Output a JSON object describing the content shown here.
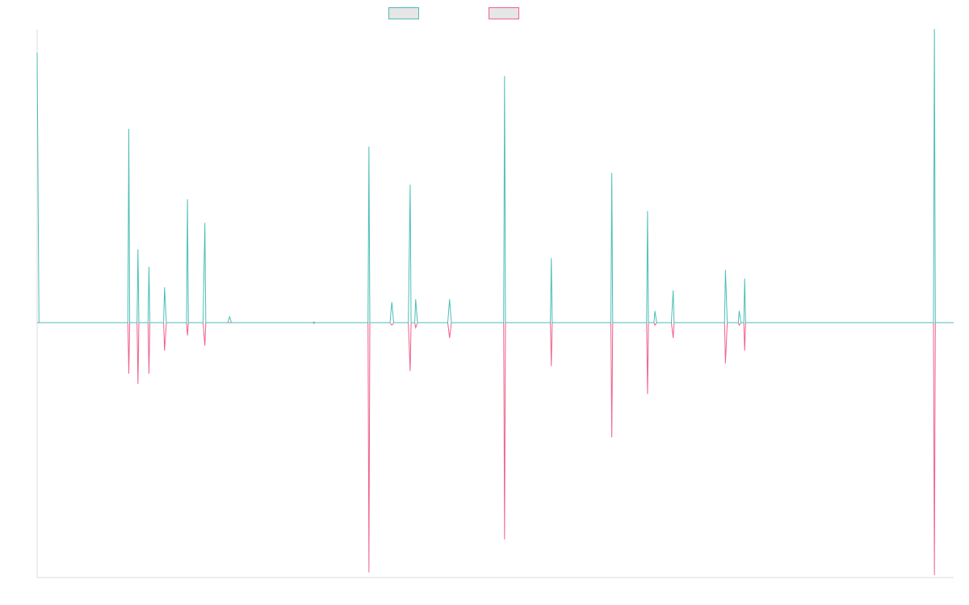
{
  "colors": {
    "series_a": "#4bbfb6",
    "series_b": "#f0628a",
    "axis": "#dddddd",
    "legend_fill": "#e6e6e6"
  },
  "chart_data": {
    "type": "line",
    "grid": false,
    "legend_placement": "top-center",
    "title": "",
    "xlabel": "",
    "ylabel": "",
    "xlim": [
      0,
      1000
    ],
    "ylim": [
      -100,
      100
    ],
    "series": [
      {
        "name": "",
        "color_key": "series_a",
        "points": [
          [
            0,
            92
          ],
          [
            2,
            0
          ],
          [
            99,
            0
          ],
          [
            100,
            66
          ],
          [
            101,
            0
          ],
          [
            109,
            0
          ],
          [
            110,
            25
          ],
          [
            111,
            0
          ],
          [
            121,
            0
          ],
          [
            122,
            19
          ],
          [
            123,
            0
          ],
          [
            138,
            0
          ],
          [
            139,
            12
          ],
          [
            141,
            0
          ],
          [
            163,
            0
          ],
          [
            164,
            42
          ],
          [
            165,
            0
          ],
          [
            181,
            0
          ],
          [
            183,
            34
          ],
          [
            184,
            0
          ],
          [
            208,
            0
          ],
          [
            210,
            2
          ],
          [
            212,
            0
          ],
          [
            301,
            0
          ],
          [
            302,
            0.3
          ],
          [
            303,
            0
          ],
          [
            361,
            0
          ],
          [
            362,
            60
          ],
          [
            363,
            0
          ],
          [
            385,
            0
          ],
          [
            387,
            7
          ],
          [
            389,
            0
          ],
          [
            405,
            0
          ],
          [
            407,
            47
          ],
          [
            408,
            0
          ],
          [
            412,
            0
          ],
          [
            413,
            8
          ],
          [
            415,
            0
          ],
          [
            448,
            0
          ],
          [
            450,
            8
          ],
          [
            452,
            0
          ],
          [
            509,
            0
          ],
          [
            510,
            84
          ],
          [
            511,
            0
          ],
          [
            560,
            0
          ],
          [
            561,
            22
          ],
          [
            562,
            0
          ],
          [
            626,
            0
          ],
          [
            627,
            51
          ],
          [
            628,
            0
          ],
          [
            665,
            0
          ],
          [
            666,
            38
          ],
          [
            667,
            0
          ],
          [
            673,
            0
          ],
          [
            674,
            4
          ],
          [
            676,
            0
          ],
          [
            692,
            0
          ],
          [
            694,
            11
          ],
          [
            695,
            0
          ],
          [
            750,
            0
          ],
          [
            751,
            18
          ],
          [
            753,
            0
          ],
          [
            765,
            0
          ],
          [
            766,
            4
          ],
          [
            768,
            0
          ],
          [
            771,
            0
          ],
          [
            772,
            15
          ],
          [
            773,
            0
          ],
          [
            978,
            0
          ],
          [
            979,
            100
          ],
          [
            980,
            0
          ],
          [
            1000,
            0
          ]
        ]
      },
      {
        "name": "",
        "color_key": "series_b",
        "points": [
          [
            0,
            0
          ],
          [
            99,
            0
          ],
          [
            100,
            -20
          ],
          [
            101,
            0
          ],
          [
            109,
            0
          ],
          [
            110,
            -24
          ],
          [
            111,
            0
          ],
          [
            121,
            0
          ],
          [
            122,
            -20
          ],
          [
            123,
            0
          ],
          [
            138,
            0
          ],
          [
            139,
            -11
          ],
          [
            141,
            0
          ],
          [
            163,
            0
          ],
          [
            164,
            -5
          ],
          [
            165,
            0
          ],
          [
            181,
            0
          ],
          [
            183,
            -9
          ],
          [
            184,
            0
          ],
          [
            301,
            0
          ],
          [
            302,
            -0.3
          ],
          [
            303,
            0
          ],
          [
            361,
            0
          ],
          [
            362,
            -98
          ],
          [
            363,
            0
          ],
          [
            385,
            0
          ],
          [
            387,
            -1
          ],
          [
            389,
            0
          ],
          [
            405,
            0
          ],
          [
            407,
            -19
          ],
          [
            408,
            0
          ],
          [
            412,
            0
          ],
          [
            413,
            -2
          ],
          [
            415,
            0
          ],
          [
            448,
            0
          ],
          [
            450,
            -6
          ],
          [
            452,
            0
          ],
          [
            509,
            0
          ],
          [
            510,
            -85
          ],
          [
            511,
            0
          ],
          [
            560,
            0
          ],
          [
            561,
            -17
          ],
          [
            562,
            0
          ],
          [
            626,
            0
          ],
          [
            627,
            -45
          ],
          [
            628,
            0
          ],
          [
            665,
            0
          ],
          [
            666,
            -28
          ],
          [
            667,
            0
          ],
          [
            673,
            0
          ],
          [
            674,
            -1
          ],
          [
            676,
            0
          ],
          [
            692,
            0
          ],
          [
            694,
            -6
          ],
          [
            695,
            0
          ],
          [
            750,
            0
          ],
          [
            751,
            -16
          ],
          [
            753,
            0
          ],
          [
            765,
            0
          ],
          [
            766,
            -1
          ],
          [
            768,
            0
          ],
          [
            771,
            0
          ],
          [
            772,
            -11
          ],
          [
            773,
            0
          ],
          [
            978,
            0
          ],
          [
            979,
            -99
          ],
          [
            980,
            0
          ],
          [
            1000,
            0
          ]
        ]
      }
    ]
  }
}
